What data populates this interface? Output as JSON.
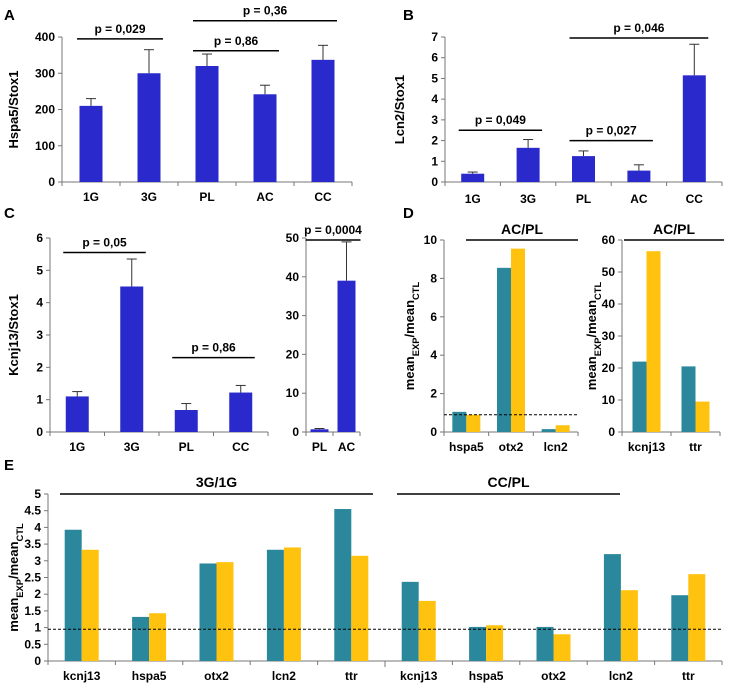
{
  "colors": {
    "blue": "#2a2acc",
    "teal": "#2b879b",
    "gold": "#ffc20e"
  },
  "chart_data": [
    {
      "id": "A",
      "type": "bar",
      "panel_label": "A",
      "ylabel": "Hspa5/Stox1",
      "ylim": [
        0,
        400
      ],
      "yticks": [
        "0",
        "100",
        "200",
        "300",
        "400"
      ],
      "categories": [
        "1G",
        "3G",
        "PL",
        "AC",
        "CC"
      ],
      "values": [
        210,
        300,
        320,
        242,
        337
      ],
      "errors": [
        20,
        65,
        33,
        25,
        40
      ],
      "comparisons": [
        {
          "from": 0,
          "to": 1,
          "label": "p = 0,029",
          "y": 395
        },
        {
          "from": 2,
          "to": 3,
          "label": "p = 0,86",
          "y": 362
        },
        {
          "from": 2,
          "to": 4,
          "label": "p = 0,36",
          "y": 445
        }
      ]
    },
    {
      "id": "B",
      "type": "bar",
      "panel_label": "B",
      "ylabel": "Lcn2/Stox1",
      "ylim": [
        0,
        7
      ],
      "yticks": [
        "0",
        "1",
        "2",
        "3",
        "4",
        "5",
        "6",
        "7"
      ],
      "categories": [
        "1G",
        "3G",
        "PL",
        "AC",
        "CC"
      ],
      "values": [
        0.4,
        1.65,
        1.25,
        0.55,
        5.15
      ],
      "errors": [
        0.08,
        0.4,
        0.25,
        0.28,
        1.5
      ],
      "comparisons": [
        {
          "from": 0,
          "to": 1,
          "label": "p = 0,049",
          "y": 2.5
        },
        {
          "from": 2,
          "to": 3,
          "label": "p = 0,027",
          "y": 2.0
        },
        {
          "from": 2,
          "to": 4,
          "label": "p = 0,046",
          "y": 6.95
        }
      ]
    },
    {
      "id": "C1",
      "type": "bar",
      "panel_label": "C",
      "ylabel": "Kcnj13/Stox1",
      "ylim": [
        0,
        6
      ],
      "yticks": [
        "0",
        "1",
        "2",
        "3",
        "4",
        "5",
        "6"
      ],
      "categories": [
        "1G",
        "3G",
        "PL",
        "CC"
      ],
      "values": [
        1.1,
        4.5,
        0.68,
        1.22
      ],
      "errors": [
        0.15,
        0.85,
        0.2,
        0.22
      ],
      "comparisons": [
        {
          "from": 0,
          "to": 1,
          "label": "p = 0,05",
          "y": 5.55
        },
        {
          "from": 2,
          "to": 3,
          "label": "p = 0,86",
          "y": 2.3
        }
      ]
    },
    {
      "id": "C2",
      "type": "bar",
      "ylim": [
        0,
        50
      ],
      "yticks": [
        "0",
        "10",
        "20",
        "30",
        "40",
        "50"
      ],
      "categories": [
        "PL",
        "AC"
      ],
      "values": [
        0.7,
        39
      ],
      "errors": [
        0.2,
        10
      ],
      "comparisons": [
        {
          "from": 0,
          "to": 1,
          "label": "p = 0,0004",
          "y": 49.5
        }
      ]
    },
    {
      "id": "D1",
      "type": "bar",
      "panel_label": "D",
      "ylabel": "meanEXP/meanCTL",
      "ylim": [
        0,
        10
      ],
      "yticks": [
        "0",
        "2",
        "4",
        "6",
        "8",
        "10"
      ],
      "group_title": "AC/PL",
      "categories": [
        "hspa5",
        "otx2",
        "lcn2"
      ],
      "series": [
        {
          "name": "teal",
          "values": [
            1.05,
            8.55,
            0.15
          ]
        },
        {
          "name": "gold",
          "values": [
            0.9,
            9.55,
            0.35
          ]
        }
      ],
      "reference_line": 0.9
    },
    {
      "id": "D2",
      "type": "bar",
      "ylabel": "meanEXP/meanCTL",
      "ylim": [
        0,
        60
      ],
      "yticks": [
        "0",
        "10",
        "20",
        "30",
        "40",
        "50",
        "60"
      ],
      "group_title": "AC/PL",
      "categories": [
        "kcnj13",
        "ttr"
      ],
      "series": [
        {
          "name": "teal",
          "values": [
            22,
            20.5
          ]
        },
        {
          "name": "gold",
          "values": [
            56.5,
            9.5
          ]
        }
      ]
    },
    {
      "id": "E",
      "type": "bar",
      "panel_label": "E",
      "ylabel": "meanEXP/meanCTL",
      "ylim": [
        0,
        5
      ],
      "yticks": [
        "0",
        "0.5",
        "1",
        "1.5",
        "2",
        "2.5",
        "3",
        "3.5",
        "4",
        "4.5",
        "5"
      ],
      "group_titles": [
        "3G/1G",
        "CC/PL"
      ],
      "categories": [
        "kcnj13",
        "hspa5",
        "otx2",
        "lcn2",
        "ttr",
        "kcnj13",
        "hspa5",
        "otx2",
        "lcn2",
        "ttr"
      ],
      "series": [
        {
          "name": "teal",
          "values": [
            3.93,
            1.32,
            2.92,
            3.33,
            4.55,
            2.37,
            1.02,
            1.02,
            3.2,
            1.97
          ]
        },
        {
          "name": "gold",
          "values": [
            3.33,
            1.43,
            2.96,
            3.4,
            3.15,
            1.8,
            1.07,
            0.8,
            2.12,
            2.6
          ]
        }
      ],
      "reference_line": 0.95
    }
  ]
}
